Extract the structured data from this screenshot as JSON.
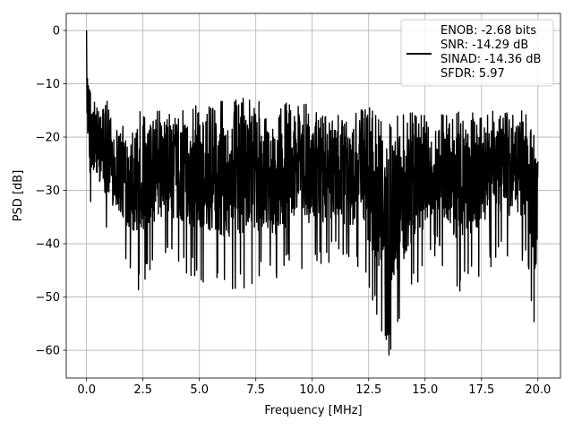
{
  "chart_data": {
    "type": "line",
    "title": "",
    "xlabel": "Frequency [MHz]",
    "ylabel": "PSD [dB]",
    "xlim": [
      -0.9,
      21.0
    ],
    "ylim": [
      -65.2,
      3.2
    ],
    "xticks": [
      0.0,
      2.5,
      5.0,
      7.5,
      10.0,
      12.5,
      15.0,
      17.5,
      20.0
    ],
    "xtick_labels": [
      "0.0",
      "2.5",
      "5.0",
      "7.5",
      "10.0",
      "12.5",
      "15.0",
      "17.5",
      "20.0"
    ],
    "yticks": [
      0,
      -10,
      -20,
      -30,
      -40,
      -50,
      -60
    ],
    "ytick_labels": [
      "0",
      "−10",
      "−20",
      "−30",
      "−40",
      "−50",
      "−60"
    ],
    "grid": true,
    "legend_position": "top-right",
    "legend_lines": [
      "ENOB: -2.68 bits",
      "SNR: -14.29 dB",
      "SINAD: -14.36 dB",
      "SFDR: 5.97"
    ],
    "series": [
      {
        "color": "#000000",
        "envelope": {
          "x": [
            0.0,
            0.05,
            0.1,
            0.2,
            0.3,
            0.5,
            1.0,
            1.65,
            2.3,
            2.5,
            3.5,
            4.5,
            6.3,
            7.5,
            8.2,
            9.0,
            10.0,
            11.0,
            12.3,
            13.35,
            14.5,
            15.5,
            16.5,
            17.5,
            18.5,
            19.5,
            19.9,
            20.0
          ],
          "upper": [
            0,
            -6,
            -9,
            -8,
            -12,
            -13,
            -13,
            -15,
            -15,
            -14,
            -15,
            -14,
            -13,
            -12,
            -16,
            -13,
            -14,
            -16,
            -14,
            -16,
            -15,
            -16,
            -15,
            -15,
            -15,
            -15,
            -19,
            -24
          ],
          "lower": [
            -23,
            -23,
            -32,
            -37,
            -35,
            -34,
            -40,
            -45,
            -49,
            -48,
            -43,
            -46,
            -50,
            -48,
            -49,
            -46,
            -46,
            -44,
            -48,
            -62,
            -50,
            -42,
            -50,
            -46,
            -43,
            -44,
            -58,
            -40
          ]
        }
      }
    ]
  },
  "colors": {
    "line": "#000000",
    "grid": "#b0b0b0",
    "axes": "#000000",
    "background": "#ffffff"
  }
}
